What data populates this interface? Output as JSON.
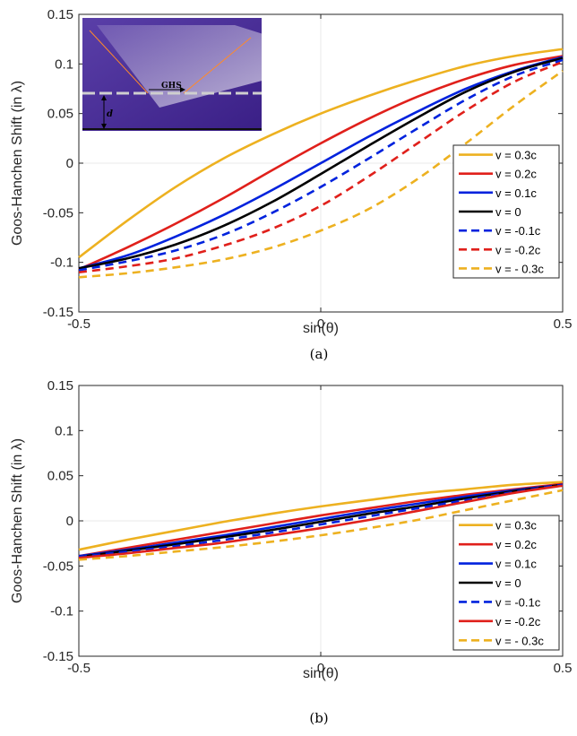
{
  "chart_data": [
    {
      "type": "line",
      "caption": "(a)",
      "xlabel": "sin(θ)",
      "ylabel": "Goos-Hanchen Shift (in λ)",
      "xlim": [
        -0.5,
        0.5
      ],
      "ylim": [
        -0.15,
        0.15
      ],
      "xticks": [
        "-0.5",
        "0",
        "0.5"
      ],
      "yticks": [
        "-0.15",
        "-0.1",
        "-0.05",
        "0",
        "0.05",
        "0.1",
        "0.15"
      ],
      "grid": false,
      "legend_position": "right",
      "inset": {
        "label": "GHS",
        "d_label": "d"
      },
      "x": [
        -0.5,
        -0.4,
        -0.3,
        -0.2,
        -0.1,
        0,
        0.1,
        0.2,
        0.3,
        0.4,
        0.5
      ],
      "series": [
        {
          "name": "v = 0.3c",
          "color": "#EDB120",
          "dash": false,
          "values": [
            -0.095,
            -0.058,
            -0.024,
            0.005,
            0.029,
            0.05,
            0.068,
            0.084,
            0.098,
            0.108,
            0.115
          ]
        },
        {
          "name": "v = 0.2c",
          "color": "#E0201B",
          "dash": false,
          "values": [
            -0.107,
            -0.085,
            -0.061,
            -0.035,
            -0.007,
            0.02,
            0.045,
            0.067,
            0.085,
            0.099,
            0.108
          ]
        },
        {
          "name": "v = 0.1c",
          "color": "#0022DD",
          "dash": false,
          "values": [
            -0.106,
            -0.093,
            -0.074,
            -0.052,
            -0.027,
            0.0,
            0.027,
            0.052,
            0.075,
            0.093,
            0.107
          ]
        },
        {
          "name": "v = 0",
          "color": "#000000",
          "dash": false,
          "values": [
            -0.106,
            -0.096,
            -0.082,
            -0.063,
            -0.039,
            -0.011,
            0.018,
            0.046,
            0.072,
            0.092,
            0.106
          ]
        },
        {
          "name": "v = -0.1c",
          "color": "#0022DD",
          "dash": true,
          "values": [
            -0.108,
            -0.099,
            -0.088,
            -0.072,
            -0.05,
            -0.024,
            0.005,
            0.035,
            0.064,
            0.088,
            0.104
          ]
        },
        {
          "name": "v = -0.2c",
          "color": "#E0201B",
          "dash": true,
          "values": [
            -0.11,
            -0.104,
            -0.096,
            -0.083,
            -0.066,
            -0.043,
            -0.013,
            0.02,
            0.053,
            0.082,
            0.102
          ]
        },
        {
          "name": "v = - 0.3c",
          "color": "#EDB120",
          "dash": true,
          "values": [
            -0.115,
            -0.111,
            -0.105,
            -0.097,
            -0.085,
            -0.068,
            -0.046,
            -0.016,
            0.02,
            0.058,
            0.093
          ]
        }
      ]
    },
    {
      "type": "line",
      "caption": "(b)",
      "xlabel": "sin(θ)",
      "ylabel": "Goos-Hanchen Shift (in λ)",
      "xlim": [
        -0.5,
        0.5
      ],
      "ylim": [
        -0.15,
        0.15
      ],
      "xticks": [
        "-0.5",
        "0",
        "0.5"
      ],
      "yticks": [
        "-0.15",
        "-0.1",
        "-0.05",
        "0",
        "0.05",
        "0.1",
        "0.15"
      ],
      "grid": false,
      "legend_position": "right",
      "x": [
        -0.5,
        -0.4,
        -0.3,
        -0.2,
        -0.1,
        0,
        0.1,
        0.2,
        0.3,
        0.4,
        0.5
      ],
      "series": [
        {
          "name": "v = 0.3c",
          "color": "#EDB120",
          "dash": false,
          "values": [
            -0.032,
            -0.021,
            -0.011,
            -0.001,
            0.008,
            0.016,
            0.023,
            0.03,
            0.035,
            0.04,
            0.043
          ]
        },
        {
          "name": "v = 0.2c",
          "color": "#E0201B",
          "dash": false,
          "values": [
            -0.039,
            -0.03,
            -0.021,
            -0.012,
            -0.003,
            0.006,
            0.014,
            0.022,
            0.029,
            0.035,
            0.041
          ]
        },
        {
          "name": "v = 0.1c",
          "color": "#0022DD",
          "dash": false,
          "values": [
            -0.039,
            -0.032,
            -0.024,
            -0.016,
            -0.007,
            0.002,
            0.011,
            0.019,
            0.027,
            0.034,
            0.04
          ]
        },
        {
          "name": "v = 0",
          "color": "#000000",
          "dash": false,
          "values": [
            -0.04,
            -0.033,
            -0.026,
            -0.018,
            -0.01,
            -0.001,
            0.008,
            0.016,
            0.025,
            0.033,
            0.04
          ]
        },
        {
          "name": "v = -0.1c",
          "color": "#0022DD",
          "dash": true,
          "values": [
            -0.04,
            -0.034,
            -0.028,
            -0.021,
            -0.013,
            -0.004,
            0.005,
            0.014,
            0.023,
            0.032,
            0.04
          ]
        },
        {
          "name": "v = -0.2c",
          "color": "#E0201B",
          "dash": false,
          "values": [
            -0.041,
            -0.036,
            -0.03,
            -0.024,
            -0.016,
            -0.008,
            0.001,
            0.011,
            0.021,
            0.031,
            0.039
          ]
        },
        {
          "name": "v = - 0.3c",
          "color": "#EDB120",
          "dash": true,
          "values": [
            -0.043,
            -0.039,
            -0.034,
            -0.029,
            -0.023,
            -0.016,
            -0.008,
            0.001,
            0.012,
            0.023,
            0.034
          ]
        }
      ]
    }
  ]
}
